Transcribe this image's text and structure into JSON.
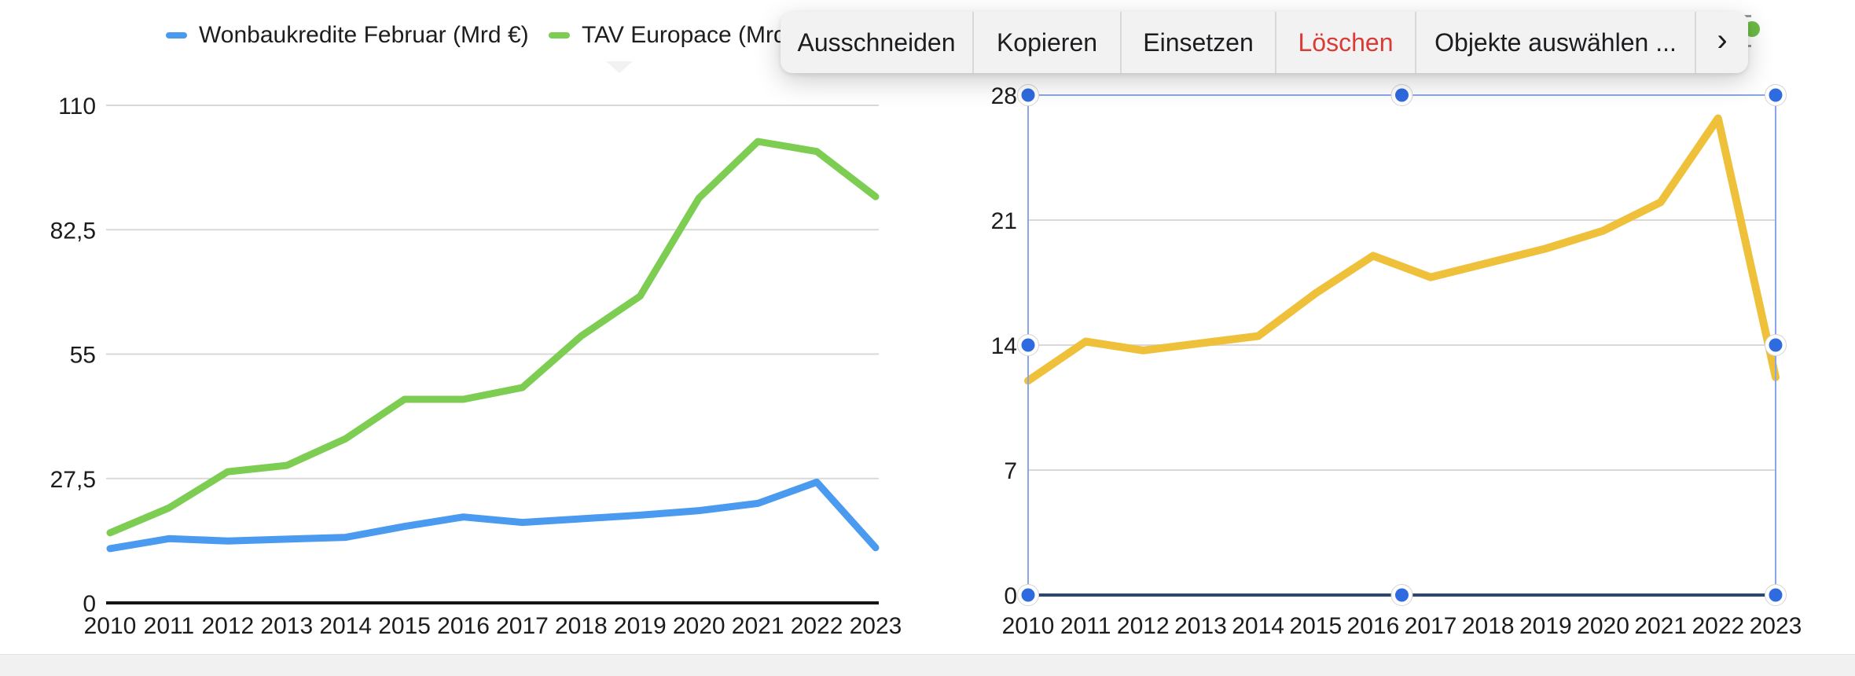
{
  "menu": {
    "items": [
      {
        "id": "cut",
        "label": "Ausschneiden"
      },
      {
        "id": "copy",
        "label": "Kopieren"
      },
      {
        "id": "paste",
        "label": "Einsetzen"
      },
      {
        "id": "delete",
        "label": "Löschen",
        "danger": true
      },
      {
        "id": "select-objects",
        "label": "Objekte auswählen ..."
      },
      {
        "id": "more",
        "label": "›",
        "chevron": true
      }
    ],
    "danger_color": "#d93b35"
  },
  "chart_data": [
    {
      "type": "line",
      "title": "",
      "categories": [
        "2010",
        "2011",
        "2012",
        "2013",
        "2014",
        "2015",
        "2016",
        "2017",
        "2018",
        "2019",
        "2020",
        "2021",
        "2022",
        "2023"
      ],
      "series": [
        {
          "name": "Wonbaukredite Februar (Mrd €)",
          "color": "#4A9AF0",
          "values": [
            12.0,
            14.2,
            13.7,
            14.1,
            14.5,
            16.9,
            19.0,
            17.8,
            18.6,
            19.4,
            20.4,
            22.0,
            26.7,
            12.2
          ]
        },
        {
          "name": "TAV Europace (Mrd €)",
          "color": "#7CCD52",
          "values": [
            15.5,
            21.0,
            29.0,
            30.4,
            36.3,
            45.0,
            45.0,
            47.6,
            59.0,
            67.8,
            89.5,
            102.0,
            99.8,
            89.8
          ]
        }
      ],
      "ylim": [
        0,
        110
      ],
      "yticks": [
        {
          "v": 0,
          "label": "0"
        },
        {
          "v": 27.5,
          "label": "27,5"
        },
        {
          "v": 55,
          "label": "55"
        },
        {
          "v": 82.5,
          "label": "82,5"
        },
        {
          "v": 110,
          "label": "110"
        }
      ],
      "grid": true,
      "legend_position": "top"
    },
    {
      "type": "line",
      "title": "",
      "categories": [
        "2010",
        "2011",
        "2012",
        "2013",
        "2014",
        "2015",
        "2016",
        "2017",
        "2018",
        "2019",
        "2020",
        "2021",
        "2022",
        "2023"
      ],
      "series": [
        {
          "name": "Wonbaukredite Februar (Mrd €)",
          "color": "#EFC13B",
          "values": [
            12.0,
            14.2,
            13.7,
            14.1,
            14.5,
            16.9,
            19.0,
            17.8,
            18.6,
            19.4,
            20.4,
            22.0,
            26.7,
            12.2
          ]
        }
      ],
      "ylim": [
        0,
        28
      ],
      "yticks": [
        {
          "v": 0,
          "label": "0"
        },
        {
          "v": 7,
          "label": "7"
        },
        {
          "v": 14,
          "label": "14"
        },
        {
          "v": 21,
          "label": "21"
        },
        {
          "v": 28,
          "label": "28"
        }
      ],
      "grid": true,
      "legend_position": "none",
      "selected": true
    }
  ],
  "selection": {
    "handle_color": "#2E6BE0",
    "frame_color": "#8BA5E9",
    "baseline_color": "#2B4672"
  }
}
